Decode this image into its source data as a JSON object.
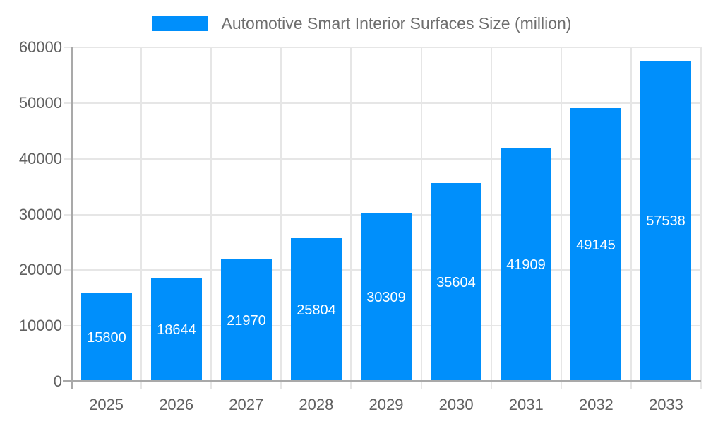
{
  "legend": {
    "label": "Automotive Smart Interior Surfaces Size (million)"
  },
  "chart_data": {
    "type": "bar",
    "title": "Automotive Smart Interior Surfaces Size (million)",
    "categories": [
      "2025",
      "2026",
      "2027",
      "2028",
      "2029",
      "2030",
      "2031",
      "2032",
      "2033"
    ],
    "values": [
      15800,
      18644,
      21970,
      25804,
      30309,
      35604,
      41909,
      49145,
      57538
    ],
    "xlabel": "",
    "ylabel": "",
    "ylim": [
      0,
      60000
    ],
    "ytick_interval": 10000,
    "ytick_labels": [
      "0",
      "10000",
      "20000",
      "30000",
      "40000",
      "50000",
      "60000"
    ],
    "grid": true,
    "legend_position": "top",
    "value_label_position": "inside-center",
    "colors": {
      "bar": "#008FFB",
      "value_label": "#FFFFFF",
      "axis_text": "#616161",
      "legend_text": "#6E6E6E",
      "gridline": "#E6E6E6",
      "axis_line": "#A9A9A9",
      "tick_minor": "#E0E0E0",
      "background": "#FFFFFF"
    }
  }
}
